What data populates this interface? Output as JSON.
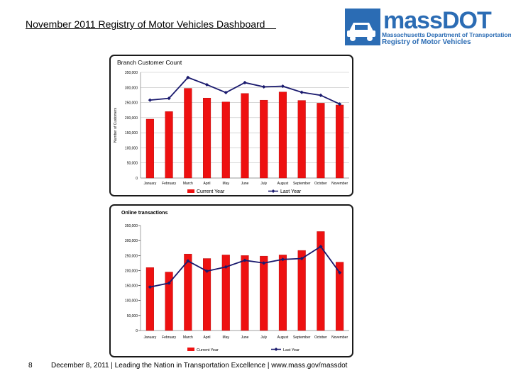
{
  "header": {
    "title": "November 2011 Registry of Motor Vehicles Dashboard    "
  },
  "logo": {
    "wordmark": "massDOT",
    "line1": "Massachusetts Department of Transportation",
    "line2": "Registry of Motor Vehicles",
    "color": "#2b6cb4",
    "icon": "car-icon"
  },
  "footer": {
    "page_number": "8",
    "text": "December 8, 2011  |  Leading the Nation in Transportation Excellence  |  www.mass.gov/massdot"
  },
  "colors": {
    "bar": "#ee1111",
    "line": "#1a1a6e"
  },
  "chart_data": [
    {
      "type": "bar",
      "title": "Branch Customer Count",
      "ylabel": "Number of Customers",
      "xlabel": "",
      "ylim": [
        0,
        350000
      ],
      "yticks": [
        0,
        50000,
        100000,
        150000,
        200000,
        250000,
        300000,
        350000
      ],
      "ytick_labels": [
        "0",
        "50,000",
        "100,000",
        "150,000",
        "200,000",
        "250,000",
        "300,000",
        "350,000"
      ],
      "categories": [
        "January",
        "February",
        "March",
        "April",
        "May",
        "June",
        "July",
        "August",
        "September",
        "October",
        "November"
      ],
      "category_labels": [
        "January",
        "February",
        "March",
        "April",
        "May",
        "June",
        "July",
        "August",
        "September",
        "October",
        "November"
      ],
      "grid": true,
      "legend": "bottom",
      "series": [
        {
          "name": "Current Year",
          "kind": "bar",
          "values": [
            195000,
            220000,
            297000,
            265000,
            252000,
            280000,
            258000,
            285000,
            257000,
            248000,
            242000
          ]
        },
        {
          "name": "Last Year",
          "kind": "line",
          "values": [
            258000,
            264000,
            333000,
            309000,
            283000,
            316000,
            302000,
            304000,
            284000,
            274000,
            245000
          ]
        }
      ]
    },
    {
      "type": "bar",
      "title": "Online transactions",
      "ylabel": "",
      "xlabel": "",
      "ylim": [
        0,
        350000
      ],
      "yticks": [
        0,
        50000,
        100000,
        150000,
        200000,
        250000,
        300000,
        350000
      ],
      "ytick_labels": [
        "0",
        "50,000",
        "100,000",
        "150,000",
        "200,000",
        "250,000",
        "300,000",
        "350,000"
      ],
      "categories": [
        "January",
        "February",
        "March",
        "April",
        "May",
        "June",
        "July",
        "August",
        "September",
        "October",
        "November"
      ],
      "category_labels": [
        "January",
        "February",
        "March",
        "April",
        "May",
        "June",
        "July",
        "August",
        "September",
        "October",
        "November"
      ],
      "grid": false,
      "legend": "bottom",
      "series": [
        {
          "name": "Current Year",
          "kind": "bar",
          "values": [
            210000,
            195000,
            255000,
            240000,
            252000,
            250000,
            248000,
            252000,
            267000,
            330000,
            228000
          ]
        },
        {
          "name": "Last Year",
          "kind": "line",
          "values": [
            145000,
            158000,
            232000,
            198000,
            212000,
            234000,
            225000,
            237000,
            240000,
            280000,
            193000
          ]
        }
      ]
    }
  ]
}
